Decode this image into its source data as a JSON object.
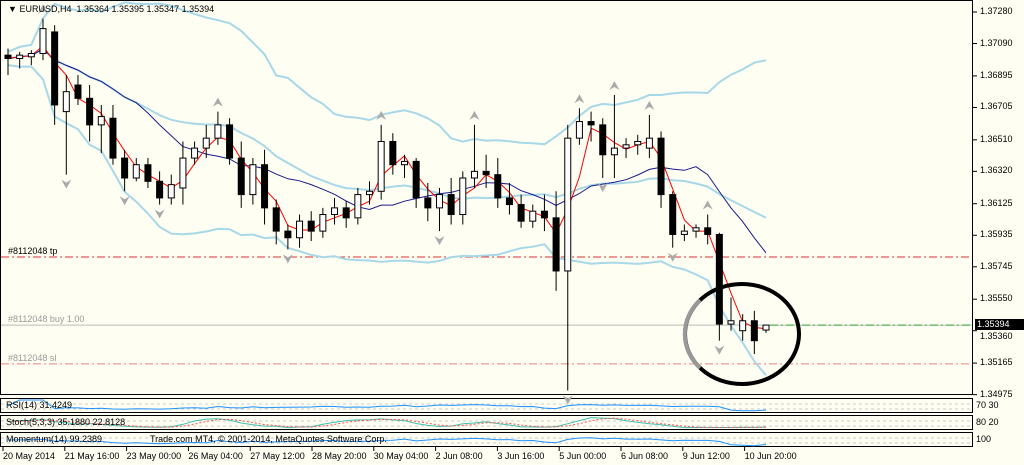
{
  "header": {
    "symbol_timeframe": "EURUSD,H4",
    "ohlc": "1.35364 1.35395 1.35347 1.35394"
  },
  "price_axis": {
    "ticks": [
      "1.37280",
      "1.37090",
      "1.36895",
      "1.36705",
      "1.36510",
      "1.36320",
      "1.36125",
      "1.35935",
      "1.35745",
      "1.35550",
      "1.35360",
      "1.35165",
      "1.34975"
    ],
    "current_price": "1.35394"
  },
  "time_axis": {
    "ticks": [
      "20 May 2014",
      "21 May 16:00",
      "23 May 00:00",
      "26 May 04:00",
      "27 May 12:00",
      "28 May 20:00",
      "30 May 04:00",
      "2 Jun 08:00",
      "3 Jun 16:00",
      "5 Jun 00:00",
      "6 Jun 08:00",
      "9 Jun 12:00",
      "10 Jun 20:00"
    ]
  },
  "orders": {
    "tp_label": "#8112048 tp",
    "tp_price": 1.35804,
    "buy_label": "#8112048 buy 1.00",
    "buy_price": 1.35394,
    "sl_label": "#8112048 sl",
    "sl_price": 1.3516
  },
  "indicators": {
    "rsi_label": "RSI(14) 31.4249",
    "stoch_label": "Stoch(5,3,3) 35.1880 22.8128",
    "momentum_label": "Momentum(14) 99.2389",
    "copyright": "Trade.com MT4, © 2001-2014, MetaQuotes Software Corp.",
    "rsi_axis": [
      "70",
      "30"
    ],
    "stoch_axis": [
      "80",
      "20"
    ],
    "momentum_axis": [
      "100"
    ]
  },
  "colors": {
    "background": "#fefef2",
    "bull_candle": "#ffffff",
    "bear_candle": "#000000",
    "fast_ma": "#ff0000",
    "slow_ma": "#1a1a8c",
    "bollinger": "#a8d8e8",
    "tp_line": "#e03030",
    "sl_line": "#f08080",
    "buy_line": "#30b030",
    "rsi": "#1e90ff",
    "stoch_main": "#40c0b0",
    "stoch_signal": "#ff5050",
    "highlight_circle": "#000000"
  },
  "chart_data": {
    "type": "candlestick",
    "symbol": "EURUSD",
    "timeframe": "H4",
    "ylim": [
      1.34975,
      1.3728
    ],
    "ohlc": [
      [
        1.3702,
        1.3706,
        1.369,
        1.37
      ],
      [
        1.37,
        1.3704,
        1.3694,
        1.3702
      ],
      [
        1.3701,
        1.3705,
        1.3696,
        1.3703
      ],
      [
        1.3703,
        1.3724,
        1.3699,
        1.3718
      ],
      [
        1.3716,
        1.372,
        1.366,
        1.3672
      ],
      [
        1.3668,
        1.369,
        1.363,
        1.368
      ],
      [
        1.3684,
        1.369,
        1.3672,
        1.3676
      ],
      [
        1.3676,
        1.3684,
        1.365,
        1.366
      ],
      [
        1.366,
        1.3672,
        1.3643,
        1.3665
      ],
      [
        1.3664,
        1.3672,
        1.3636,
        1.364
      ],
      [
        1.364,
        1.3645,
        1.362,
        1.3628
      ],
      [
        1.3628,
        1.364,
        1.3626,
        1.3636
      ],
      [
        1.3636,
        1.364,
        1.3622,
        1.3626
      ],
      [
        1.3626,
        1.3632,
        1.3612,
        1.3616
      ],
      [
        1.3616,
        1.363,
        1.3612,
        1.3624
      ],
      [
        1.3622,
        1.365,
        1.3612,
        1.364
      ],
      [
        1.364,
        1.365,
        1.3636,
        1.3646
      ],
      [
        1.3646,
        1.366,
        1.364,
        1.3652
      ],
      [
        1.3652,
        1.3668,
        1.3648,
        1.366
      ],
      [
        1.366,
        1.3664,
        1.3636,
        1.364
      ],
      [
        1.364,
        1.365,
        1.361,
        1.3618
      ],
      [
        1.3618,
        1.364,
        1.3612,
        1.3636
      ],
      [
        1.3636,
        1.3645,
        1.36,
        1.361
      ],
      [
        1.361,
        1.3615,
        1.3588,
        1.3596
      ],
      [
        1.3596,
        1.36,
        1.3585,
        1.3592
      ],
      [
        1.3592,
        1.3606,
        1.3586,
        1.3602
      ],
      [
        1.3602,
        1.3608,
        1.359,
        1.3596
      ],
      [
        1.3596,
        1.361,
        1.3592,
        1.3606
      ],
      [
        1.3606,
        1.3616,
        1.36,
        1.361
      ],
      [
        1.361,
        1.3614,
        1.3598,
        1.3604
      ],
      [
        1.3604,
        1.3622,
        1.36,
        1.3618
      ],
      [
        1.3618,
        1.3626,
        1.3612,
        1.362
      ],
      [
        1.362,
        1.366,
        1.3615,
        1.365
      ],
      [
        1.365,
        1.3655,
        1.363,
        1.3636
      ],
      [
        1.3636,
        1.3642,
        1.3628,
        1.3638
      ],
      [
        1.3638,
        1.364,
        1.361,
        1.3616
      ],
      [
        1.3616,
        1.3625,
        1.3602,
        1.361
      ],
      [
        1.361,
        1.3622,
        1.3596,
        1.3618
      ],
      [
        1.3618,
        1.3628,
        1.36,
        1.3606
      ],
      [
        1.3606,
        1.3632,
        1.36,
        1.3628
      ],
      [
        1.3628,
        1.366,
        1.3622,
        1.3632
      ],
      [
        1.3632,
        1.3642,
        1.3622,
        1.363
      ],
      [
        1.363,
        1.364,
        1.361,
        1.3616
      ],
      [
        1.3616,
        1.3625,
        1.3606,
        1.3612
      ],
      [
        1.3612,
        1.3618,
        1.3598,
        1.3602
      ],
      [
        1.3602,
        1.3612,
        1.3598,
        1.3608
      ],
      [
        1.3608,
        1.3618,
        1.3596,
        1.3604
      ],
      [
        1.3604,
        1.362,
        1.356,
        1.3572
      ],
      [
        1.3572,
        1.366,
        1.35,
        1.3652
      ],
      [
        1.3652,
        1.367,
        1.3648,
        1.3662
      ],
      [
        1.3662,
        1.3668,
        1.365,
        1.366
      ],
      [
        1.366,
        1.3664,
        1.3628,
        1.3642
      ],
      [
        1.3642,
        1.3678,
        1.3628,
        1.3646
      ],
      [
        1.3646,
        1.3652,
        1.364,
        1.3648
      ],
      [
        1.3648,
        1.3654,
        1.3642,
        1.365
      ],
      [
        1.3646,
        1.3666,
        1.364,
        1.3652
      ],
      [
        1.3652,
        1.3656,
        1.361,
        1.3618
      ],
      [
        1.3618,
        1.362,
        1.3586,
        1.3594
      ],
      [
        1.3594,
        1.36,
        1.359,
        1.3596
      ],
      [
        1.3596,
        1.36,
        1.3592,
        1.3598
      ],
      [
        1.3598,
        1.3606,
        1.3588,
        1.3594
      ],
      [
        1.3594,
        1.3595,
        1.353,
        1.354
      ],
      [
        1.354,
        1.3556,
        1.3536,
        1.3542
      ],
      [
        1.3536,
        1.3546,
        1.353,
        1.3542
      ],
      [
        1.3542,
        1.3548,
        1.3522,
        1.353
      ],
      [
        1.35364,
        1.35395,
        1.35347,
        1.35394
      ]
    ]
  }
}
